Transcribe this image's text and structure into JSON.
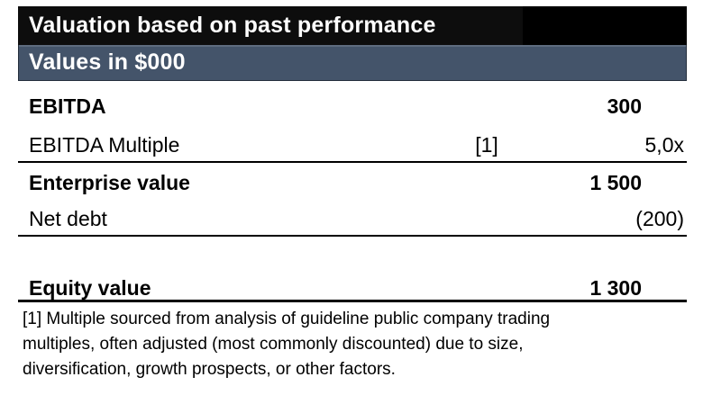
{
  "header": {
    "title": "Valuation based on past performance",
    "subtitle": "Values in $000"
  },
  "colors": {
    "title_bar_bg": "#0d0d0d",
    "title_bar_bg_right": "#000000",
    "subtitle_bar_bg": "#44546A",
    "header_text": "#ffffff",
    "body_text": "#000000",
    "rule": "#000000"
  },
  "rows": [
    {
      "label": "EBITDA",
      "ref": "",
      "value": "300"
    },
    {
      "label": "EBITDA Multiple",
      "ref": "[1]",
      "value": "5,0x"
    },
    {
      "label": "Enterprise value",
      "ref": "",
      "value": "1 500"
    },
    {
      "label": "Net debt",
      "ref": "",
      "value": "(200)"
    },
    {
      "label": "",
      "ref": "",
      "value": ""
    },
    {
      "label": "Equity value",
      "ref": "",
      "value": "1 300"
    }
  ],
  "footnote": {
    "lines": [
      "[1] Multiple sourced from analysis of guideline public company trading",
      "multiples, often adjusted (most commonly discounted) due to size,",
      "diversification, growth prospects, or other factors."
    ]
  }
}
